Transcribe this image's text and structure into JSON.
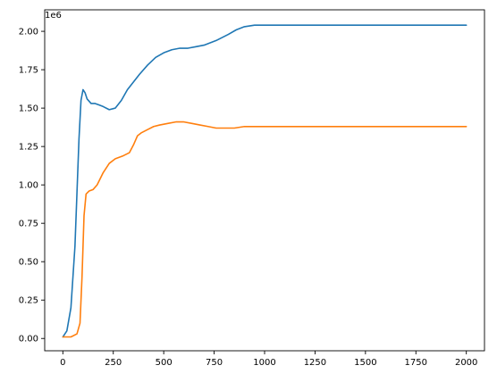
{
  "chart_data": {
    "type": "line",
    "title": "",
    "xlabel": "",
    "ylabel": "",
    "y_offset_text": "1e6",
    "xlim": [
      -90,
      2090
    ],
    "ylim": [
      -0.08,
      2.14
    ],
    "y_scale_factor": 1000000,
    "x_ticks": [
      0,
      250,
      500,
      750,
      1000,
      1250,
      1500,
      1750,
      2000
    ],
    "y_ticks": [
      0.0,
      0.25,
      0.5,
      0.75,
      1.0,
      1.25,
      1.5,
      1.75,
      2.0
    ],
    "y_tick_labels": [
      "0.00",
      "0.25",
      "0.50",
      "0.75",
      "1.00",
      "1.25",
      "1.50",
      "1.75",
      "2.00"
    ],
    "grid": false,
    "legend": "none",
    "series": [
      {
        "color": "#1f77b4",
        "x": [
          0,
          20,
          40,
          60,
          70,
          80,
          90,
          100,
          110,
          120,
          140,
          160,
          180,
          200,
          230,
          260,
          290,
          320,
          350,
          380,
          420,
          460,
          500,
          540,
          580,
          620,
          660,
          700,
          760,
          820,
          860,
          900,
          950,
          1000,
          1100,
          1200,
          1300,
          1400,
          1500,
          1600,
          1700,
          1800,
          1900,
          2000
        ],
        "y": [
          0.01,
          0.05,
          0.2,
          0.6,
          0.95,
          1.3,
          1.55,
          1.62,
          1.6,
          1.56,
          1.53,
          1.53,
          1.52,
          1.51,
          1.49,
          1.5,
          1.55,
          1.62,
          1.67,
          1.72,
          1.78,
          1.83,
          1.86,
          1.88,
          1.89,
          1.89,
          1.9,
          1.91,
          1.94,
          1.98,
          2.01,
          2.03,
          2.04,
          2.04,
          2.04,
          2.04,
          2.04,
          2.04,
          2.04,
          2.04,
          2.04,
          2.04,
          2.04,
          2.04
        ]
      },
      {
        "color": "#ff7f0e",
        "x": [
          0,
          40,
          70,
          85,
          95,
          105,
          115,
          130,
          150,
          170,
          200,
          230,
          260,
          300,
          330,
          350,
          370,
          390,
          420,
          450,
          480,
          520,
          560,
          600,
          640,
          680,
          720,
          760,
          800,
          850,
          900,
          1000,
          1100,
          1200,
          1300,
          1400,
          1500,
          1600,
          1700,
          1800,
          1900,
          2000
        ],
        "y": [
          0.01,
          0.01,
          0.03,
          0.1,
          0.4,
          0.8,
          0.94,
          0.96,
          0.97,
          1.0,
          1.08,
          1.14,
          1.17,
          1.19,
          1.21,
          1.26,
          1.32,
          1.34,
          1.36,
          1.38,
          1.39,
          1.4,
          1.41,
          1.41,
          1.4,
          1.39,
          1.38,
          1.37,
          1.37,
          1.37,
          1.38,
          1.38,
          1.38,
          1.38,
          1.38,
          1.38,
          1.38,
          1.38,
          1.38,
          1.38,
          1.38,
          1.38
        ]
      }
    ]
  }
}
